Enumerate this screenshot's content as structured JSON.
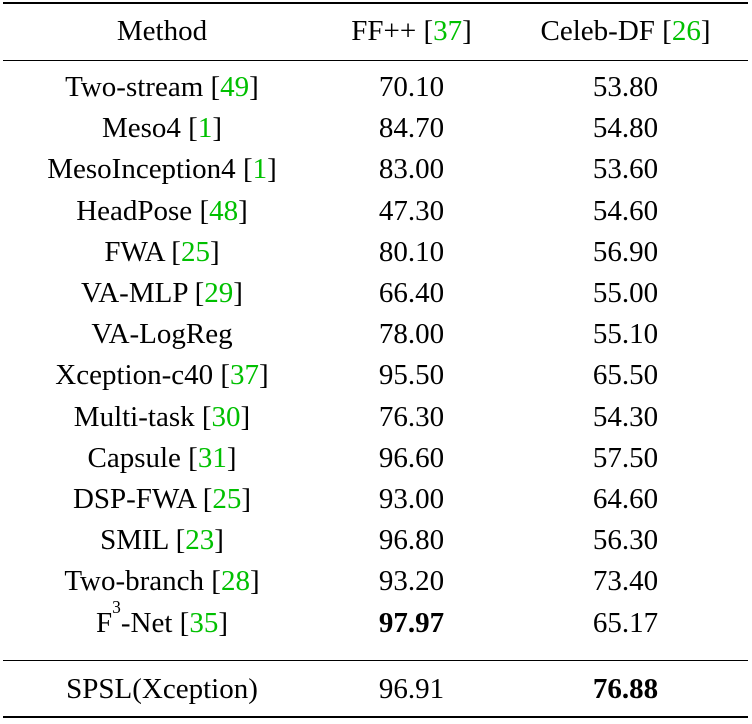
{
  "header": {
    "method": "Method",
    "col2_name": "FF++",
    "col2_ref": "37",
    "col3_name": "Celeb-DF",
    "col3_ref": "26"
  },
  "rows": [
    {
      "method": "Two-stream",
      "ref": "49",
      "ff": "70.10",
      "celeb": "53.80"
    },
    {
      "method": "Meso4",
      "ref": "1",
      "ff": "84.70",
      "celeb": "54.80"
    },
    {
      "method": "MesoInception4",
      "ref": "1",
      "ff": "83.00",
      "celeb": "53.60"
    },
    {
      "method": "HeadPose",
      "ref": "48",
      "ff": "47.30",
      "celeb": "54.60"
    },
    {
      "method": "FWA",
      "ref": "25",
      "ff": "80.10",
      "celeb": "56.90"
    },
    {
      "method": "VA-MLP",
      "ref": "29",
      "ff": "66.40",
      "celeb": "55.00"
    },
    {
      "method": "VA-LogReg",
      "ref": "",
      "ff": "78.00",
      "celeb": "55.10"
    },
    {
      "method": "Xception-c40",
      "ref": "37",
      "ff": "95.50",
      "celeb": "65.50"
    },
    {
      "method": "Multi-task",
      "ref": "30",
      "ff": "76.30",
      "celeb": "54.30"
    },
    {
      "method": "Capsule",
      "ref": "31",
      "ff": "96.60",
      "celeb": "57.50"
    },
    {
      "method": "DSP-FWA",
      "ref": "25",
      "ff": "93.00",
      "celeb": "64.60"
    },
    {
      "method": "SMIL",
      "ref": "23",
      "ff": "96.80",
      "celeb": "56.30"
    },
    {
      "method": "Two-branch",
      "ref": "28",
      "ff": "93.20",
      "celeb": "73.40"
    },
    {
      "method": "F",
      "sup": "3",
      "method_suffix": "-Net",
      "ref": "35",
      "ff": "97.97",
      "ff_bold": true,
      "celeb": "65.17"
    }
  ],
  "final": {
    "method": "SPSL(Xception)",
    "ff": "96.91",
    "celeb": "76.88",
    "celeb_bold": true
  },
  "colors": {
    "ref": "#00c000"
  }
}
